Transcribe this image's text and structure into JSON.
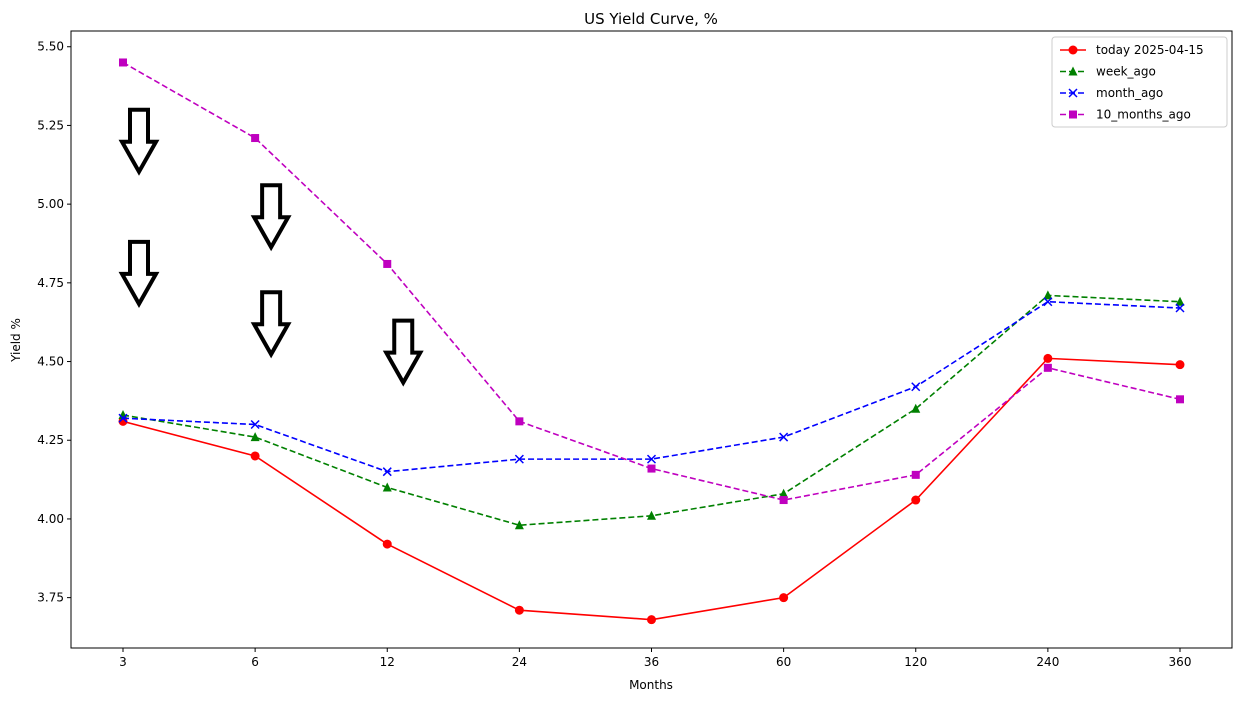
{
  "chart_data": {
    "type": "line",
    "title": "US Yield Curve, %",
    "xlabel": "Months",
    "ylabel": "Yield %",
    "categories": [
      "3",
      "6",
      "12",
      "24",
      "36",
      "60",
      "120",
      "240",
      "360"
    ],
    "ylim": [
      3.59,
      5.55
    ],
    "yticks": [
      "3.75",
      "4.00",
      "4.25",
      "4.50",
      "4.75",
      "5.00",
      "5.25",
      "5.50"
    ],
    "grid": false,
    "legend_position": "top-right",
    "series": [
      {
        "name": "today 2025-04-15",
        "color": "#ff0000",
        "linestyle": "solid",
        "marker": "circle",
        "values": [
          4.31,
          4.2,
          3.92,
          3.71,
          3.68,
          3.75,
          4.06,
          4.51,
          4.49
        ]
      },
      {
        "name": "week_ago",
        "color": "#008000",
        "linestyle": "dashed",
        "marker": "triangle",
        "values": [
          4.33,
          4.26,
          4.1,
          3.98,
          4.01,
          4.08,
          4.35,
          4.71,
          4.69
        ]
      },
      {
        "name": "month_ago",
        "color": "#0000ff",
        "linestyle": "dashed",
        "marker": "x",
        "values": [
          4.32,
          4.3,
          4.15,
          4.19,
          4.19,
          4.26,
          4.42,
          4.69,
          4.67
        ]
      },
      {
        "name": "10_months_ago",
        "color": "#bf00bf",
        "linestyle": "dashed",
        "marker": "square",
        "values": [
          5.45,
          5.21,
          4.81,
          4.31,
          4.16,
          4.06,
          4.14,
          4.48,
          4.38
        ]
      }
    ],
    "annotations": [
      {
        "type": "down-arrow-icon",
        "category": "3",
        "y": 5.3
      },
      {
        "type": "down-arrow-icon",
        "category": "3",
        "y": 4.88
      },
      {
        "type": "down-arrow-icon",
        "category": "6",
        "y": 5.06
      },
      {
        "type": "down-arrow-icon",
        "category": "6",
        "y": 4.72
      },
      {
        "type": "down-arrow-icon",
        "category": "12",
        "y": 4.63
      }
    ]
  }
}
